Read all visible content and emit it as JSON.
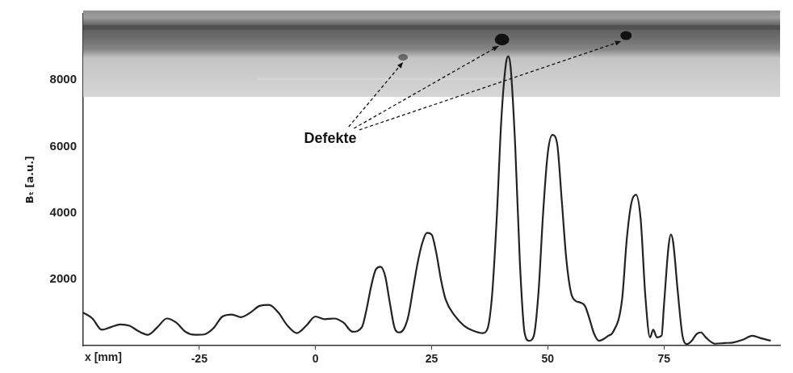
{
  "chart_data": {
    "type": "line",
    "annotations": [
      "Defekte"
    ],
    "x_label": "x [mm]",
    "y_label": "Bₜ [a.u.]",
    "x": [
      -50,
      -48,
      -46,
      -44,
      -42,
      -40,
      -38,
      -36,
      -34,
      -32,
      -30,
      -28,
      -26,
      -24,
      -22,
      -20,
      -18,
      -16,
      -14,
      -12,
      -10,
      -8,
      -6,
      -4,
      -2,
      0,
      2,
      4,
      6,
      8,
      10,
      11,
      12,
      13,
      14,
      15,
      16,
      17,
      18,
      19,
      20,
      21,
      22,
      23,
      24,
      25,
      26,
      27,
      28,
      30,
      32,
      34,
      36,
      37,
      38,
      39,
      40,
      41,
      41.5,
      42,
      43,
      44,
      45,
      46,
      47,
      48,
      49,
      50,
      51,
      52,
      53,
      54,
      55,
      56,
      57,
      58,
      59,
      60,
      61,
      62,
      63,
      64,
      66,
      67,
      68,
      69,
      70,
      71,
      72,
      72.7,
      73.5,
      74.5,
      75,
      76,
      76.5,
      77,
      78,
      79,
      80,
      81,
      82,
      83,
      84,
      86,
      88,
      90,
      92,
      94,
      96,
      98
    ],
    "values": [
      1000,
      820,
      480,
      560,
      640,
      600,
      430,
      330,
      560,
      820,
      700,
      420,
      330,
      340,
      520,
      880,
      940,
      860,
      1000,
      1200,
      1230,
      1000,
      600,
      380,
      600,
      880,
      800,
      820,
      700,
      420,
      560,
      1100,
      1800,
      2300,
      2380,
      2100,
      1300,
      550,
      400,
      500,
      900,
      1700,
      2500,
      3100,
      3400,
      3350,
      2800,
      2000,
      1400,
      900,
      600,
      450,
      380,
      500,
      1500,
      3800,
      6800,
      8500,
      8720,
      8400,
      6000,
      2500,
      400,
      150,
      300,
      1600,
      4000,
      5800,
      6350,
      6100,
      4400,
      2600,
      1600,
      1350,
      1300,
      1200,
      800,
      350,
      150,
      200,
      300,
      400,
      1400,
      3200,
      4300,
      4550,
      3800,
      1500,
      250,
      480,
      250,
      300,
      1200,
      3000,
      3350,
      3100,
      1600,
      300,
      50,
      150,
      350,
      400,
      250,
      60,
      80,
      100,
      180,
      300,
      220,
      150
    ],
    "color": "#222222",
    "marker": "none",
    "line_style": "solid",
    "xlim": [
      -50,
      100
    ],
    "xticks": [
      -25,
      0,
      25,
      50,
      75
    ],
    "ylim": [
      0,
      10000
    ],
    "yticks": [
      2000,
      4000,
      6000,
      8000
    ],
    "grid": false
  }
}
